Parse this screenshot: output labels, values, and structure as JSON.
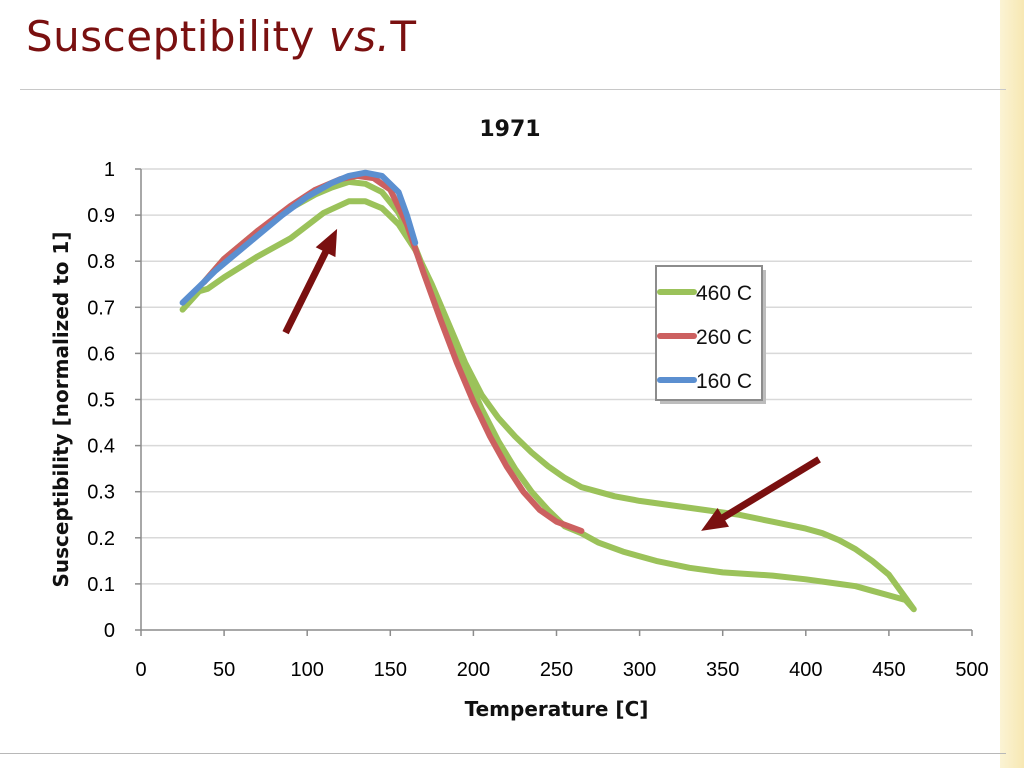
{
  "slide": {
    "title_main": "Susceptibility ",
    "title_vs": "vs.",
    "title_end": "T"
  },
  "colors": {
    "title": "#7a1010",
    "series_460": "#9bc25a",
    "series_260": "#cc6060",
    "series_160": "#5b8fd0",
    "arrow": "#7a1010",
    "gridline": "#d9d9d9"
  },
  "chart_data": {
    "type": "line",
    "title": "1971",
    "xlabel": "Temperature [C]",
    "ylabel": "Susceptibility [normalized to 1]",
    "xlim": [
      0,
      500
    ],
    "ylim": [
      0,
      1
    ],
    "x_ticks": [
      "0",
      "50",
      "100",
      "150",
      "200",
      "250",
      "300",
      "350",
      "400",
      "450",
      "500"
    ],
    "y_ticks": [
      "0",
      "0.1",
      "0.2",
      "0.3",
      "0.4",
      "0.5",
      "0.6",
      "0.7",
      "0.8",
      "0.9",
      "1"
    ],
    "grid": "horizontal",
    "legend_position": "right",
    "series": [
      {
        "name": "460 C",
        "color_key": "series_460",
        "segments": [
          [
            [
              25,
              0.695
            ],
            [
              35,
              0.735
            ],
            [
              40,
              0.74
            ],
            [
              50,
              0.765
            ],
            [
              70,
              0.81
            ],
            [
              90,
              0.85
            ],
            [
              110,
              0.905
            ],
            [
              125,
              0.93
            ],
            [
              135,
              0.93
            ],
            [
              145,
              0.915
            ],
            [
              155,
              0.88
            ],
            [
              165,
              0.825
            ],
            [
              175,
              0.75
            ],
            [
              185,
              0.665
            ],
            [
              195,
              0.58
            ],
            [
              205,
              0.51
            ],
            [
              215,
              0.46
            ],
            [
              225,
              0.42
            ],
            [
              235,
              0.385
            ],
            [
              245,
              0.355
            ],
            [
              255,
              0.33
            ],
            [
              265,
              0.31
            ],
            [
              275,
              0.3
            ],
            [
              285,
              0.29
            ],
            [
              300,
              0.28
            ],
            [
              320,
              0.27
            ],
            [
              340,
              0.26
            ],
            [
              360,
              0.25
            ],
            [
              380,
              0.235
            ],
            [
              400,
              0.22
            ],
            [
              410,
              0.21
            ],
            [
              420,
              0.195
            ],
            [
              430,
              0.175
            ],
            [
              440,
              0.15
            ],
            [
              450,
              0.12
            ],
            [
              458,
              0.08
            ],
            [
              465,
              0.045
            ],
            [
              460,
              0.065
            ],
            [
              450,
              0.075
            ],
            [
              440,
              0.085
            ],
            [
              430,
              0.095
            ],
            [
              420,
              0.1
            ],
            [
              400,
              0.11
            ],
            [
              380,
              0.118
            ],
            [
              350,
              0.125
            ],
            [
              330,
              0.135
            ],
            [
              310,
              0.15
            ],
            [
              290,
              0.17
            ],
            [
              275,
              0.19
            ],
            [
              265,
              0.21
            ],
            [
              255,
              0.225
            ],
            [
              245,
              0.26
            ],
            [
              235,
              0.3
            ],
            [
              225,
              0.35
            ],
            [
              215,
              0.41
            ],
            [
              205,
              0.48
            ],
            [
              195,
              0.56
            ],
            [
              185,
              0.65
            ],
            [
              175,
              0.74
            ],
            [
              165,
              0.83
            ],
            [
              155,
              0.905
            ],
            [
              145,
              0.95
            ],
            [
              135,
              0.968
            ],
            [
              125,
              0.972
            ],
            [
              115,
              0.96
            ],
            [
              105,
              0.945
            ],
            [
              90,
              0.915
            ],
            [
              70,
              0.865
            ],
            [
              50,
              0.805
            ],
            [
              38,
              0.755
            ]
          ]
        ]
      },
      {
        "name": "260 C",
        "color_key": "series_260",
        "segments": [
          [
            [
              38,
              0.755
            ],
            [
              50,
              0.805
            ],
            [
              70,
              0.865
            ],
            [
              90,
              0.92
            ],
            [
              105,
              0.955
            ],
            [
              120,
              0.978
            ],
            [
              130,
              0.985
            ],
            [
              140,
              0.98
            ],
            [
              150,
              0.955
            ],
            [
              160,
              0.88
            ],
            [
              170,
              0.775
            ],
            [
              180,
              0.675
            ],
            [
              190,
              0.58
            ],
            [
              200,
              0.495
            ],
            [
              210,
              0.42
            ],
            [
              220,
              0.355
            ],
            [
              230,
              0.3
            ],
            [
              240,
              0.26
            ],
            [
              250,
              0.235
            ],
            [
              265,
              0.215
            ]
          ]
        ]
      },
      {
        "name": "160 C",
        "color_key": "series_160",
        "segments": [
          [
            [
              25,
              0.71
            ],
            [
              35,
              0.745
            ],
            [
              45,
              0.78
            ],
            [
              55,
              0.81
            ],
            [
              70,
              0.855
            ],
            [
              85,
              0.9
            ],
            [
              100,
              0.94
            ],
            [
              115,
              0.97
            ],
            [
              125,
              0.985
            ],
            [
              135,
              0.992
            ],
            [
              145,
              0.985
            ],
            [
              155,
              0.95
            ],
            [
              160,
              0.9
            ],
            [
              165,
              0.84
            ]
          ]
        ]
      }
    ],
    "arrows": [
      {
        "from": [
          87,
          0.645
        ],
        "to": [
          118,
          0.87
        ]
      },
      {
        "from": [
          408,
          0.37
        ],
        "to": [
          337,
          0.215
        ]
      }
    ]
  }
}
